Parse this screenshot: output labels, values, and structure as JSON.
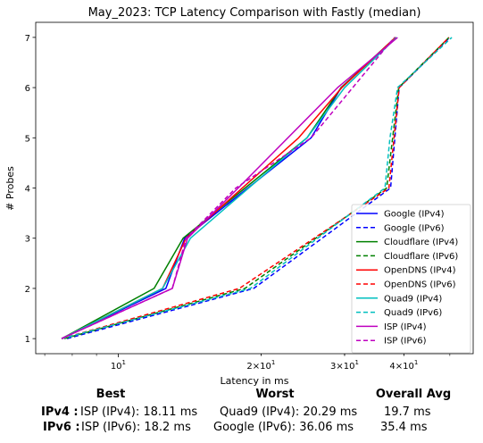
{
  "chart_data": {
    "type": "line",
    "title": "May_2023: TCP Latency Comparison with Fastly (median)",
    "xlabel": "Latency in ms",
    "ylabel": "# Probes",
    "xscale": "log",
    "xlim": [
      6.7,
      56
    ],
    "ylim": [
      0.7,
      7.3
    ],
    "x_tick_labels": [
      "10^1",
      "2×10^1",
      "3×10^1",
      "4×10^1"
    ],
    "y_ticks": [
      1,
      2,
      3,
      4,
      5,
      6,
      7
    ],
    "grid": false,
    "legend": "lower-right",
    "series": [
      {
        "name": "Google (IPv4)",
        "color": "#0000ff",
        "dash": false,
        "x": [
          7.6,
          12.6,
          13.8,
          25.5,
          29.5,
          38.5
        ],
        "y": [
          1,
          2,
          3,
          5,
          6,
          7
        ]
      },
      {
        "name": "Google (IPv6)",
        "color": "#0000ff",
        "dash": true,
        "x": [
          7.8,
          19.3,
          37.5,
          39.1,
          50.0
        ],
        "y": [
          1,
          2,
          4,
          6,
          7
        ]
      },
      {
        "name": "Cloudflare (IPv4)",
        "color": "#008000",
        "dash": false,
        "x": [
          7.6,
          11.9,
          13.7,
          25.0,
          29.5,
          38.4
        ],
        "y": [
          1,
          2,
          3,
          5,
          6,
          7
        ]
      },
      {
        "name": "Cloudflare (IPv6)",
        "color": "#008000",
        "dash": true,
        "x": [
          7.7,
          18.5,
          36.8,
          39.0,
          49.8
        ],
        "y": [
          1,
          2,
          4,
          6,
          7
        ]
      },
      {
        "name": "OpenDNS (IPv4)",
        "color": "#ff0000",
        "dash": false,
        "x": [
          7.6,
          12.4,
          13.9,
          24.0,
          29.6,
          38.4
        ],
        "y": [
          1,
          2,
          3,
          5,
          6,
          7
        ]
      },
      {
        "name": "OpenDNS (IPv6)",
        "color": "#ff0000",
        "dash": true,
        "x": [
          7.6,
          18.0,
          37.2,
          39.1,
          49.8
        ],
        "y": [
          1,
          2,
          4,
          6,
          7
        ]
      },
      {
        "name": "Quad9 (IPv4)",
        "color": "#00bfbf",
        "dash": false,
        "x": [
          7.6,
          12.4,
          14.2,
          25.0,
          30.0,
          38.6
        ],
        "y": [
          1,
          2,
          3,
          5,
          6,
          7
        ]
      },
      {
        "name": "Quad9 (IPv6)",
        "color": "#00bfbf",
        "dash": true,
        "x": [
          7.6,
          19.0,
          36.5,
          37.4,
          38.8,
          50.5
        ],
        "y": [
          1,
          2,
          4,
          5,
          6,
          7
        ]
      },
      {
        "name": "ISP (IPv4)",
        "color": "#bf00bf",
        "dash": false,
        "x": [
          7.6,
          13.0,
          14.0,
          17.9,
          29.0,
          38.8
        ],
        "y": [
          1,
          2,
          3,
          4,
          6,
          7
        ]
      },
      {
        "name": "ISP (IPv6)",
        "color": "#bf00bf",
        "dash": true,
        "x": [
          7.6,
          13.0,
          13.9,
          17.7,
          25.5,
          38.2
        ],
        "y": [
          1,
          2,
          3,
          4,
          5,
          7
        ]
      }
    ]
  },
  "summary": {
    "headers": {
      "best": "Best",
      "worst": "Worst",
      "avg": "Overall Avg"
    },
    "rows": [
      {
        "label": "IPv4 :",
        "best": "ISP (IPv4): 18.11 ms",
        "worst": "Quad9 (IPv4): 20.29 ms",
        "avg": "19.7 ms"
      },
      {
        "label": "IPv6 :",
        "best": "ISP (IPv6): 18.2 ms",
        "worst": "Google (IPv6): 36.06 ms",
        "avg": "35.4 ms"
      }
    ]
  }
}
